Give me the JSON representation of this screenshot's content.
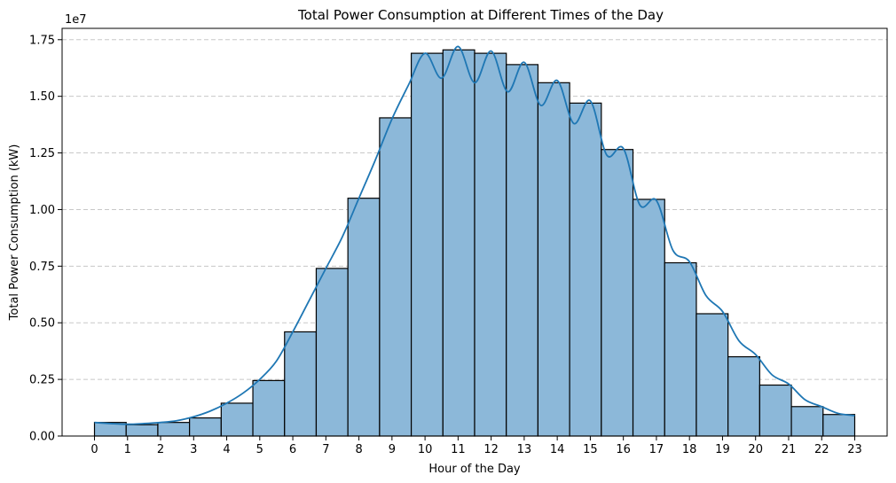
{
  "chart_data": {
    "type": "bar",
    "title": "Total Power Consumption at Different Times of the Day",
    "xlabel": "Hour of the Day",
    "ylabel": "Total Power Consumption (kW)",
    "y_scale_label": "1e7",
    "ylim": [
      0,
      1.8
    ],
    "y_ticks": [
      "0.00",
      "0.25",
      "0.50",
      "0.75",
      "1.00",
      "1.25",
      "1.50",
      "1.75"
    ],
    "categories": [
      "0",
      "1",
      "2",
      "3",
      "4",
      "5",
      "6",
      "7",
      "8",
      "9",
      "10",
      "11",
      "12",
      "13",
      "14",
      "15",
      "16",
      "17",
      "18",
      "19",
      "20",
      "21",
      "22",
      "23"
    ],
    "bar_values": [
      0.06,
      0.05,
      0.06,
      0.08,
      0.145,
      0.245,
      0.46,
      0.74,
      1.05,
      1.405,
      1.69,
      1.705,
      1.69,
      1.64,
      1.56,
      1.47,
      1.265,
      1.045,
      0.765,
      0.54,
      0.35,
      0.225,
      0.13,
      0.095
    ],
    "bar_color": "#8cb8d9",
    "kde_color": "#1f77b4",
    "kde_curve": {
      "x": [
        0,
        0.5,
        1,
        1.5,
        2,
        2.5,
        3,
        3.5,
        4,
        4.5,
        5,
        5.5,
        6,
        6.5,
        7,
        7.5,
        8,
        8.5,
        9,
        9.5,
        10,
        10.5,
        11,
        11.5,
        12,
        12.5,
        13,
        13.5,
        14,
        14.5,
        15,
        15.5,
        16,
        16.5,
        17,
        17.5,
        18,
        18.5,
        19,
        19.5,
        20,
        20.5,
        21,
        21.5,
        22,
        22.5,
        23
      ],
      "y": [
        0.06,
        0.055,
        0.052,
        0.055,
        0.06,
        0.068,
        0.085,
        0.11,
        0.145,
        0.19,
        0.25,
        0.33,
        0.46,
        0.6,
        0.74,
        0.88,
        1.05,
        1.22,
        1.4,
        1.55,
        1.69,
        1.58,
        1.72,
        1.56,
        1.7,
        1.52,
        1.65,
        1.46,
        1.57,
        1.38,
        1.48,
        1.24,
        1.27,
        1.02,
        1.04,
        0.82,
        0.77,
        0.62,
        0.55,
        0.42,
        0.36,
        0.27,
        0.23,
        0.16,
        0.13,
        0.1,
        0.09
      ]
    },
    "grid": "y-dashed",
    "legend": "none"
  }
}
